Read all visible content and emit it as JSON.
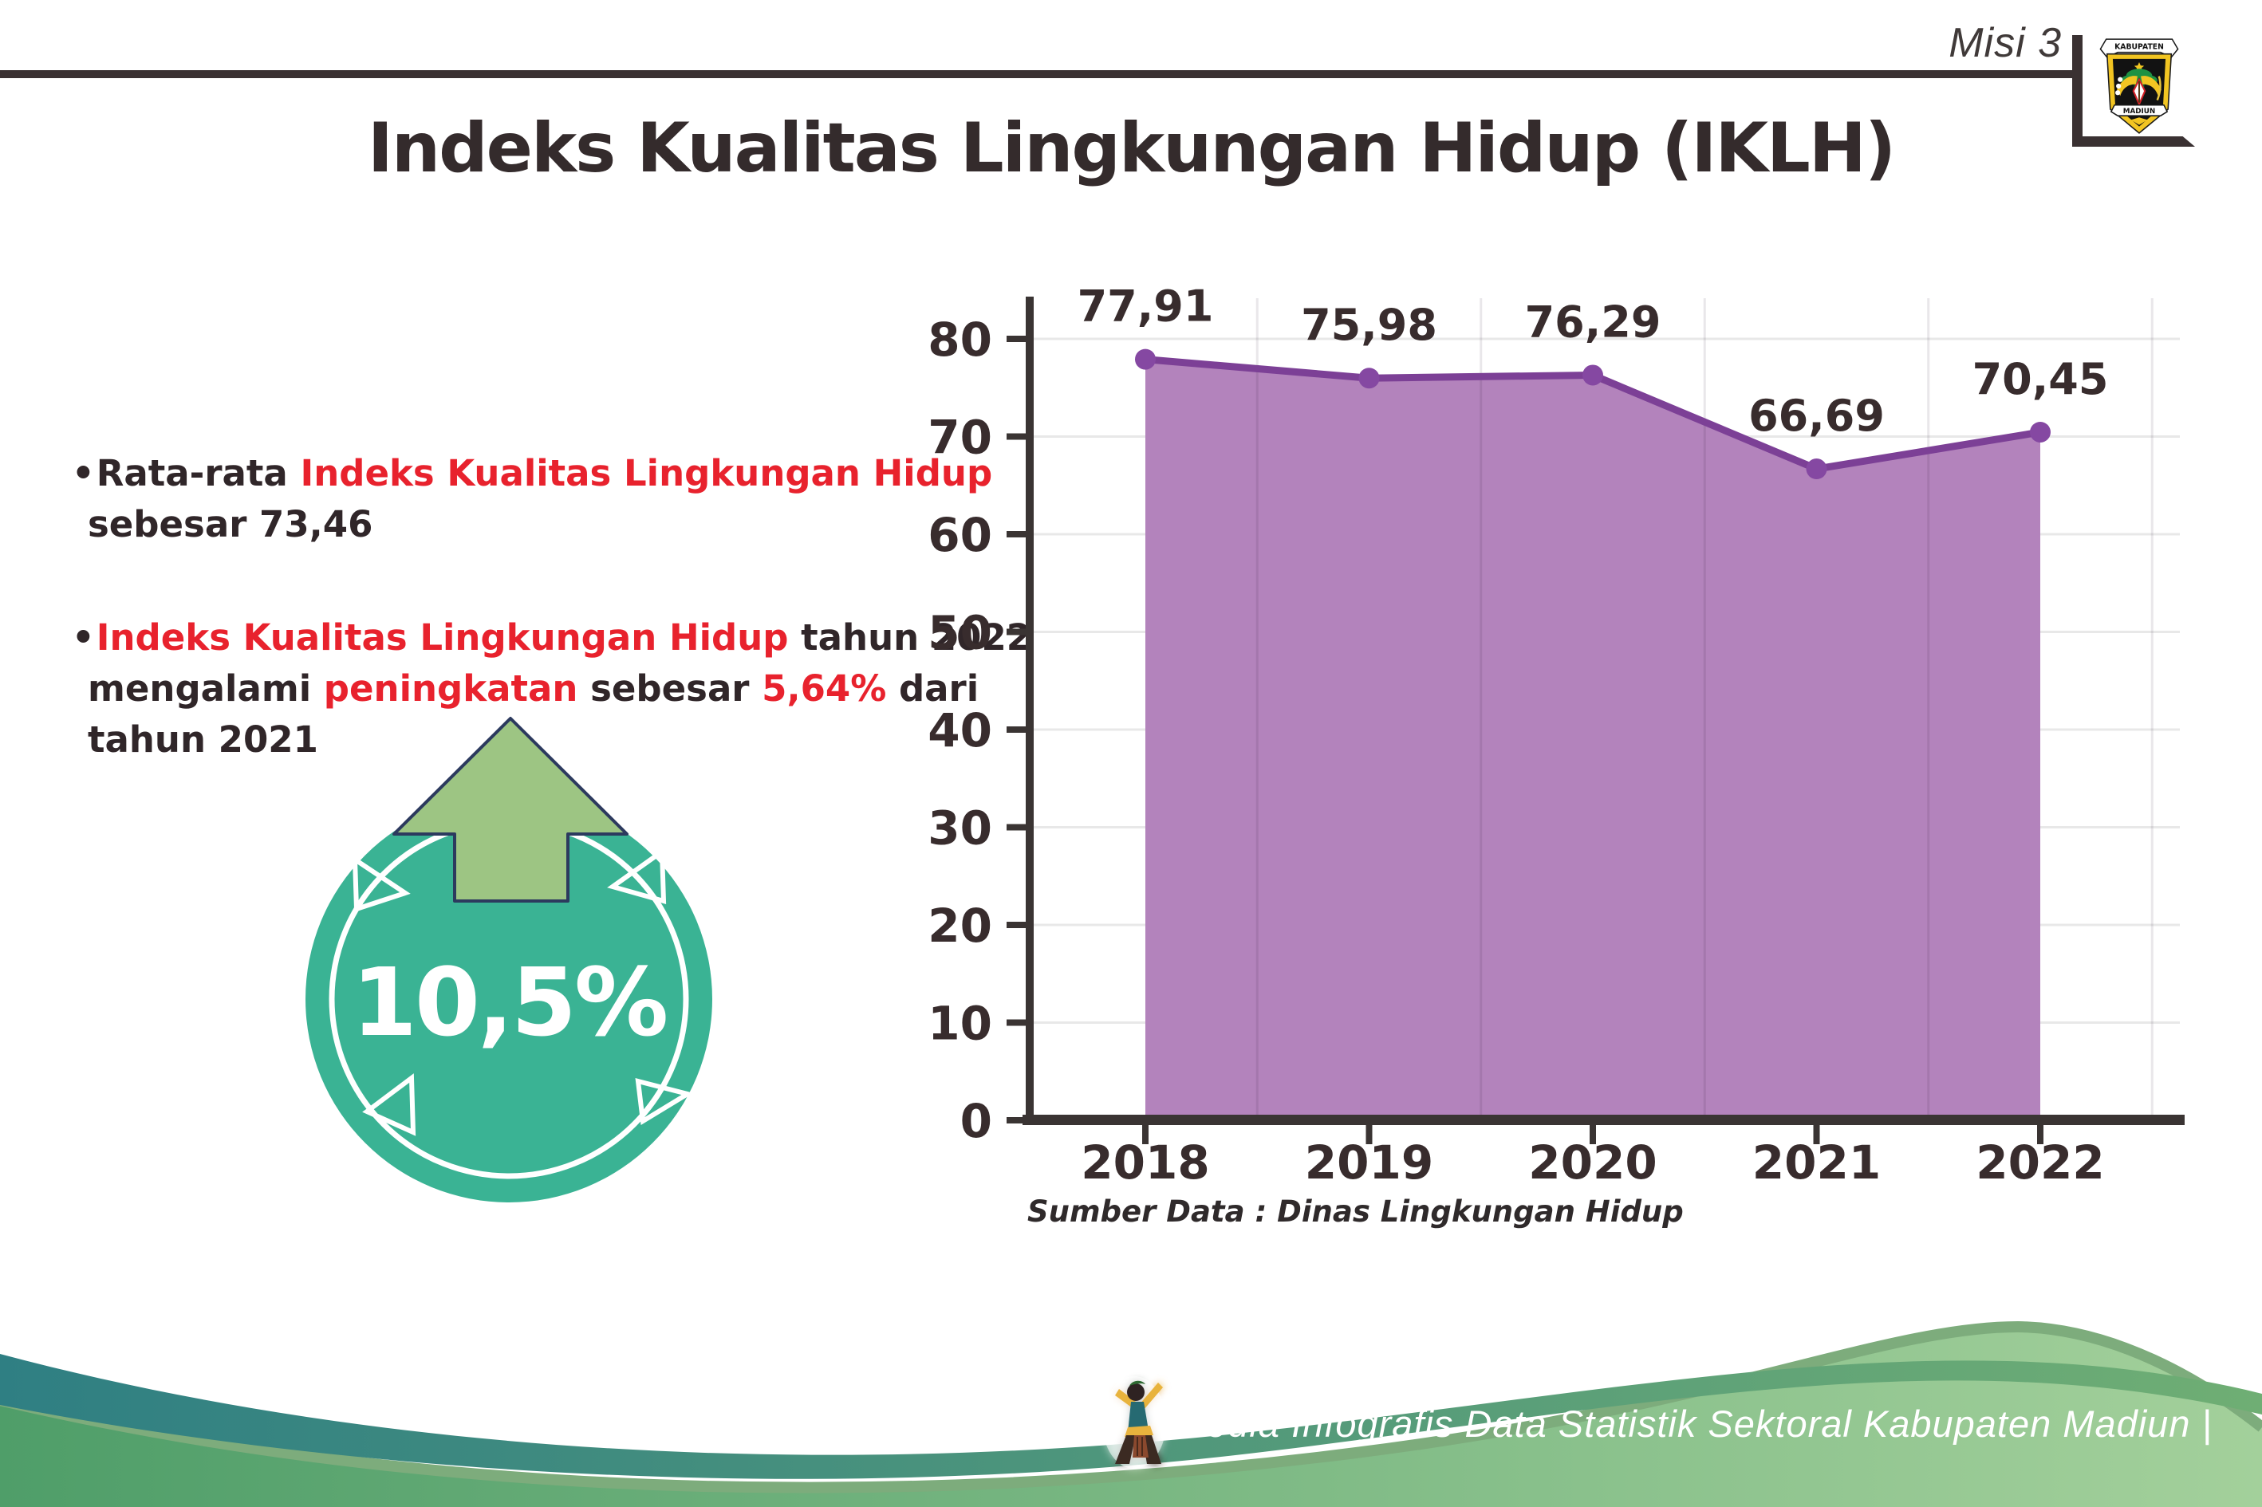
{
  "header": {
    "misi_label": "Misi 3",
    "title": "Indeks Kualitas Lingkungan Hidup (IKLH)"
  },
  "logo": {
    "top_text": "KABUPATEN",
    "bottom_text": "MADIUN"
  },
  "insights": {
    "bullet_char": "•",
    "b1_l1_dark": "Rata-rata ",
    "b1_l1_red": "Indeks Kualitas Lingkungan Hidup",
    "b1_l2_dark": "sebesar 73,46",
    "b2_l1_red": "Indeks Kualitas Lingkungan Hidup",
    "b2_l1_dark": " tahun 2022",
    "b2_l2_dark1": "mengalami ",
    "b2_l2_red1": "peningkatan",
    "b2_l2_dark2": " sebesar ",
    "b2_l2_red2": "5,64%",
    "b2_l2_dark3": " dari",
    "b2_l3_dark": "tahun 2021"
  },
  "badge": {
    "value": "10,5%"
  },
  "chart_data": {
    "type": "area",
    "title": "",
    "xlabel": "",
    "ylabel": "",
    "categories": [
      "2018",
      "2019",
      "2020",
      "2021",
      "2022"
    ],
    "values": [
      77.91,
      75.98,
      76.29,
      66.69,
      70.45
    ],
    "value_labels": [
      "77,91",
      "75,98",
      "76,29",
      "66,69",
      "70,45"
    ],
    "y_ticks": [
      0,
      10,
      20,
      30,
      40,
      50,
      60,
      70,
      80
    ],
    "ylim": [
      0,
      85
    ],
    "grid": true,
    "legend": "none",
    "fill_color": "#b383bc",
    "line_color": "#7c4096",
    "marker_color": "#8548a2",
    "axis_color": "#3a3433",
    "gridline_color": "#e8e8e8",
    "label_color": "#382c2d"
  },
  "source_note": "Sumber Data : Dinas Lingkungan Hidup",
  "footer": {
    "credit": "Media Infografis Data Statistik Sektoral Kabupaten Madiun |"
  },
  "colors": {
    "accent_red": "#e8222d",
    "text_dark": "#342b2c",
    "rule_dark": "#3a3132",
    "badge_teal": "#3ab394",
    "arrow_green": "#9dc583",
    "arrow_outline": "#2c3a5e",
    "wave_teal_start": "#2f7f83",
    "wave_teal_end": "#6fae74",
    "wave_green_start": "#4f9e69",
    "wave_green_end": "#a3d09b"
  }
}
